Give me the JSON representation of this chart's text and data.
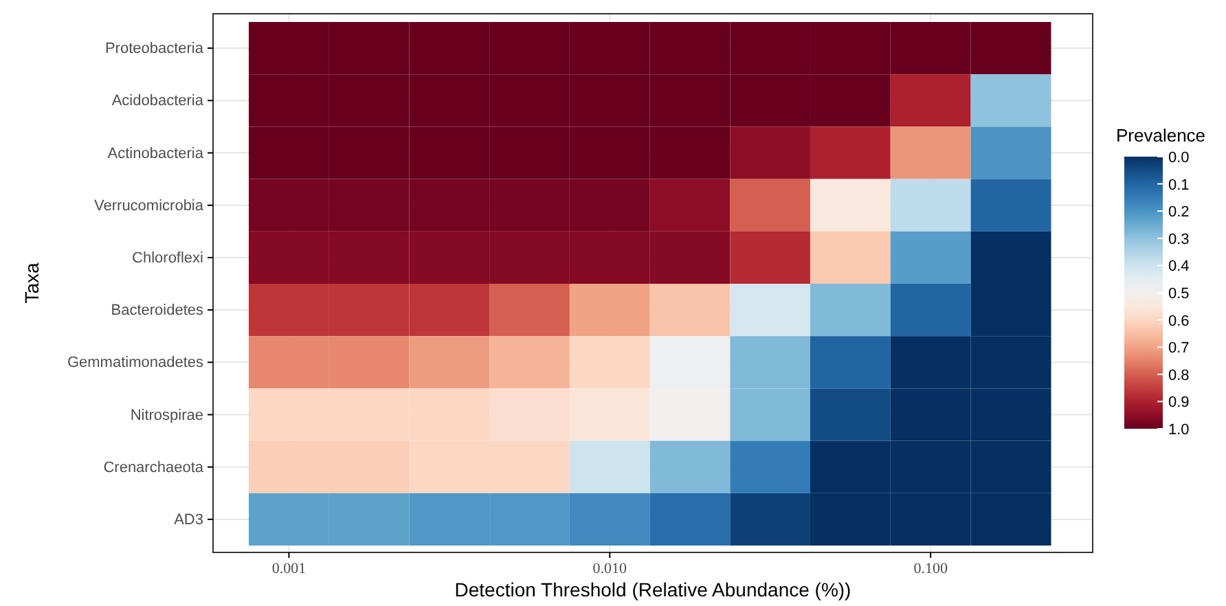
{
  "chart_data": {
    "type": "heatmap",
    "xlabel": "Detection Threshold (Relative Abundance (%))",
    "ylabel": "Taxa",
    "legend_title": "Prevalence",
    "grid": true,
    "log": "x",
    "x": [
      0.001,
      0.00178,
      0.00316,
      0.00562,
      0.01,
      0.0178,
      0.0316,
      0.0562,
      0.1,
      0.178
    ],
    "xlim": [
      0.00058,
      0.32
    ],
    "xticks": [
      {
        "value": 0.001,
        "label": "0.001"
      },
      {
        "value": 0.01,
        "label": "0.010"
      },
      {
        "value": 0.1,
        "label": "0.100"
      }
    ],
    "y_categories": [
      "Proteobacteria",
      "Acidobacteria",
      "Actinobacteria",
      "Verrucomicrobia",
      "Chloroflexi",
      "Bacteroidetes",
      "Gemmatimonadetes",
      "Nitrospirae",
      "Crenarchaeota",
      "AD3"
    ],
    "cells": [
      [
        1,
        1,
        1,
        1,
        1,
        1,
        1,
        1,
        1,
        1
      ],
      [
        1,
        1,
        1,
        1,
        1,
        1,
        1,
        1,
        0.9,
        0.3
      ],
      [
        1,
        1,
        1,
        1,
        1,
        1,
        0.95,
        0.9,
        0.72,
        0.2
      ],
      [
        0.98,
        0.98,
        0.98,
        0.98,
        0.98,
        0.95,
        0.8,
        0.55,
        0.37,
        0.1
      ],
      [
        0.96,
        0.96,
        0.96,
        0.96,
        0.96,
        0.96,
        0.88,
        0.63,
        0.22,
        0
      ],
      [
        0.86,
        0.86,
        0.86,
        0.8,
        0.7,
        0.64,
        0.42,
        0.28,
        0.1,
        0
      ],
      [
        0.74,
        0.74,
        0.71,
        0.67,
        0.6,
        0.48,
        0.28,
        0.1,
        0,
        0
      ],
      [
        0.6,
        0.6,
        0.6,
        0.58,
        0.56,
        0.5,
        0.28,
        0.05,
        0,
        0
      ],
      [
        0.62,
        0.62,
        0.6,
        0.6,
        0.4,
        0.28,
        0.15,
        0,
        0,
        0
      ],
      [
        0.23,
        0.23,
        0.21,
        0.21,
        0.18,
        0.12,
        0.03,
        0,
        0,
        0
      ]
    ],
    "clim": [
      0,
      1
    ],
    "cticks": [
      {
        "value": 0,
        "label": "0.0"
      },
      {
        "value": 0.1,
        "label": "0.1"
      },
      {
        "value": 0.2,
        "label": "0.2"
      },
      {
        "value": 0.3,
        "label": "0.3"
      },
      {
        "value": 0.4,
        "label": "0.4"
      },
      {
        "value": 0.5,
        "label": "0.5"
      },
      {
        "value": 0.6,
        "label": "0.6"
      },
      {
        "value": 0.7,
        "label": "0.7"
      },
      {
        "value": 0.8,
        "label": "0.8"
      },
      {
        "value": 0.9,
        "label": "0.9"
      },
      {
        "value": 1,
        "label": "1.0"
      }
    ]
  }
}
